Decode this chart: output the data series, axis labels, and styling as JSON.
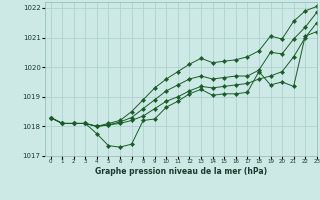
{
  "title": "Graphe pression niveau de la mer (hPa)",
  "bg_color": "#cce9e5",
  "grid_color": "#aacfcc",
  "line_color": "#1a5c28",
  "xlim": [
    -0.5,
    23
  ],
  "ylim": [
    1017,
    1022.2
  ],
  "xtick_labels": [
    "0",
    "1",
    "2",
    "3",
    "4",
    "5",
    "6",
    "7",
    "8",
    "9",
    "10",
    "11",
    "12",
    "13",
    "14",
    "15",
    "16",
    "17",
    "18",
    "19",
    "20",
    "21",
    "22",
    "23"
  ],
  "yticks": [
    1017,
    1018,
    1019,
    1020,
    1021,
    1022
  ],
  "line1_y": [
    1018.3,
    1018.1,
    1018.1,
    1018.1,
    1017.75,
    1017.35,
    1017.3,
    1017.4,
    1018.2,
    1018.25,
    1018.65,
    1018.85,
    1019.1,
    1019.25,
    1019.05,
    1019.1,
    1019.1,
    1019.15,
    1019.85,
    1019.4,
    1019.5,
    1019.35,
    1021.05,
    1021.2
  ],
  "line2_y": [
    1018.3,
    1018.1,
    1018.1,
    1018.1,
    1018.0,
    1018.05,
    1018.1,
    1018.2,
    1018.35,
    1018.6,
    1018.85,
    1019.0,
    1019.2,
    1019.35,
    1019.3,
    1019.35,
    1019.4,
    1019.45,
    1019.6,
    1019.7,
    1019.85,
    1020.35,
    1021.0,
    1021.5
  ],
  "line3_y": [
    1018.3,
    1018.1,
    1018.1,
    1018.1,
    1018.0,
    1018.05,
    1018.15,
    1018.3,
    1018.6,
    1018.9,
    1019.2,
    1019.4,
    1019.6,
    1019.7,
    1019.6,
    1019.65,
    1019.7,
    1019.7,
    1019.9,
    1020.5,
    1020.45,
    1020.95,
    1021.35,
    1021.85
  ],
  "line4_y": [
    1018.3,
    1018.1,
    1018.1,
    1018.1,
    1018.0,
    1018.1,
    1018.2,
    1018.5,
    1018.9,
    1019.3,
    1019.6,
    1019.85,
    1020.1,
    1020.3,
    1020.15,
    1020.2,
    1020.25,
    1020.35,
    1020.55,
    1021.05,
    1020.95,
    1021.55,
    1021.9,
    1022.05
  ]
}
